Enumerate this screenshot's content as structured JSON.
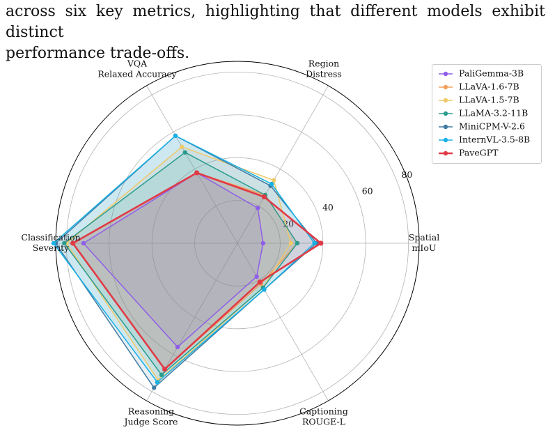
{
  "caption": {
    "line1": "across six key metrics, highlighting that different models exhibit distinct",
    "line2": "performance trade-offs."
  },
  "chart_data": {
    "type": "radar",
    "axes": [
      [
        "Spatial",
        "mIoU"
      ],
      [
        "Region",
        "Distress"
      ],
      [
        "VQA",
        "Relaxed Accuracy"
      ],
      [
        "Classification",
        "Severity"
      ],
      [
        "Reasoning",
        "Judge Score"
      ],
      [
        "Captioning",
        "ROUGE-L"
      ]
    ],
    "rlim": [
      0,
      85
    ],
    "rticks": [
      20,
      40,
      60,
      80
    ],
    "grid": true,
    "legend_position": "top-right",
    "series": [
      {
        "name": "PaliGemma-3B",
        "color": "#8f5ee8",
        "values": [
          12,
          19,
          38,
          72,
          56,
          18
        ]
      },
      {
        "name": "LLaVA-1.6-7B",
        "color": "#f2a05b",
        "values": [
          28,
          26,
          38,
          77,
          68,
          22
        ]
      },
      {
        "name": "LLaVA-1.5-7B",
        "color": "#efc96a",
        "values": [
          25,
          34,
          52,
          80,
          74,
          24
        ]
      },
      {
        "name": "LLaMA-3.2-11B",
        "color": "#2a9b8e",
        "values": [
          28,
          26,
          49,
          81,
          71,
          24
        ]
      },
      {
        "name": "MiniCPM-V-2.6",
        "color": "#3f7ca4",
        "values": [
          37,
          31,
          58,
          85,
          78,
          25
        ]
      },
      {
        "name": "InternVL-3.5-8B",
        "color": "#18b1e6",
        "values": [
          36,
          32,
          58,
          86,
          75,
          25
        ]
      },
      {
        "name": "PaveGPT",
        "color": "#e03b46",
        "values": [
          39,
          25,
          38,
          77,
          68,
          21
        ]
      }
    ]
  }
}
